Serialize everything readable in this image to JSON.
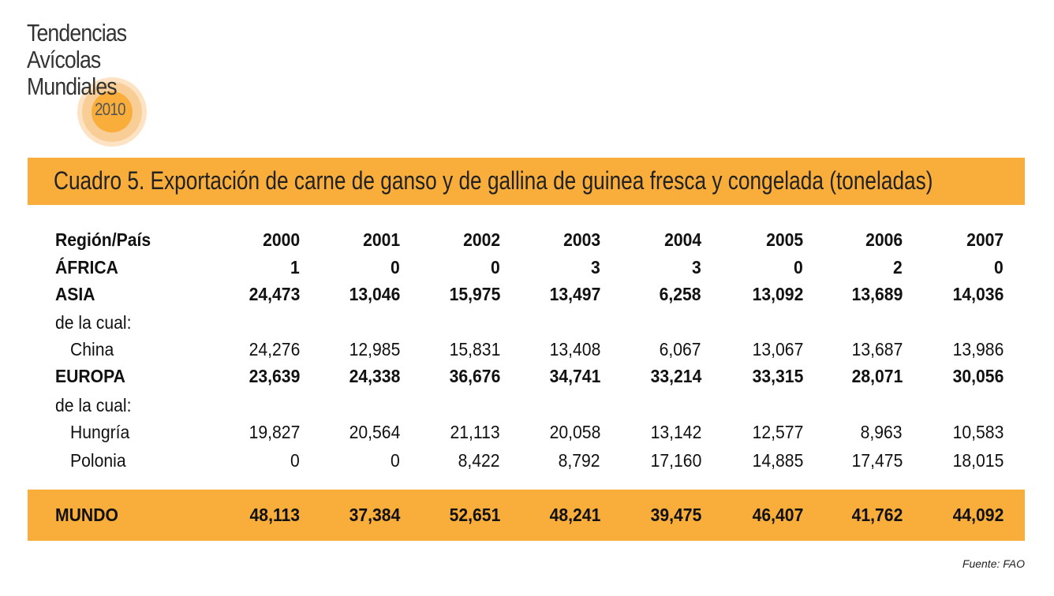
{
  "logo": {
    "lines": [
      "Tendencias",
      "Avícolas",
      "Mundiales"
    ],
    "year": "2010"
  },
  "colors": {
    "accent": "#f9ae3b"
  },
  "source": "Fuente: FAO",
  "chart_data": {
    "type": "table",
    "title": "Cuadro 5. Exportación de carne de ganso y de gallina de guinea fresca y congelada (toneladas)",
    "columns": [
      "Región/País",
      "2000",
      "2001",
      "2002",
      "2003",
      "2004",
      "2005",
      "2006",
      "2007"
    ],
    "rows": [
      {
        "label": "ÁFRICA",
        "bold": true,
        "indent": false,
        "values": [
          "1",
          "0",
          "0",
          "3",
          "3",
          "0",
          "2",
          "0"
        ]
      },
      {
        "label": "ASIA",
        "bold": true,
        "indent": false,
        "values": [
          "24,473",
          "13,046",
          "15,975",
          "13,497",
          "6,258",
          "13,092",
          "13,689",
          "14,036"
        ]
      },
      {
        "label": "de la cual:",
        "bold": false,
        "indent": false,
        "values": []
      },
      {
        "label": "China",
        "bold": false,
        "indent": true,
        "values": [
          "24,276",
          "12,985",
          "15,831",
          "13,408",
          "6,067",
          "13,067",
          "13,687",
          "13,986"
        ]
      },
      {
        "label": "EUROPA",
        "bold": true,
        "indent": false,
        "values": [
          "23,639",
          "24,338",
          "36,676",
          "34,741",
          "33,214",
          "33,315",
          "28,071",
          "30,056"
        ]
      },
      {
        "label": "de la cual:",
        "bold": false,
        "indent": false,
        "values": []
      },
      {
        "label": "Hungría",
        "bold": false,
        "indent": true,
        "values": [
          "19,827",
          "20,564",
          "21,113",
          "20,058",
          "13,142",
          "12,577",
          "8,963",
          "10,583"
        ]
      },
      {
        "label": "Polonia",
        "bold": false,
        "indent": true,
        "values": [
          "0",
          "0",
          "8,422",
          "8,792",
          "17,160",
          "14,885",
          "17,475",
          "18,015"
        ]
      },
      {
        "label": "MUNDO",
        "bold": true,
        "indent": false,
        "values": [
          "48,113",
          "37,384",
          "52,651",
          "48,241",
          "39,475",
          "46,407",
          "41,762",
          "44,092"
        ]
      }
    ]
  }
}
